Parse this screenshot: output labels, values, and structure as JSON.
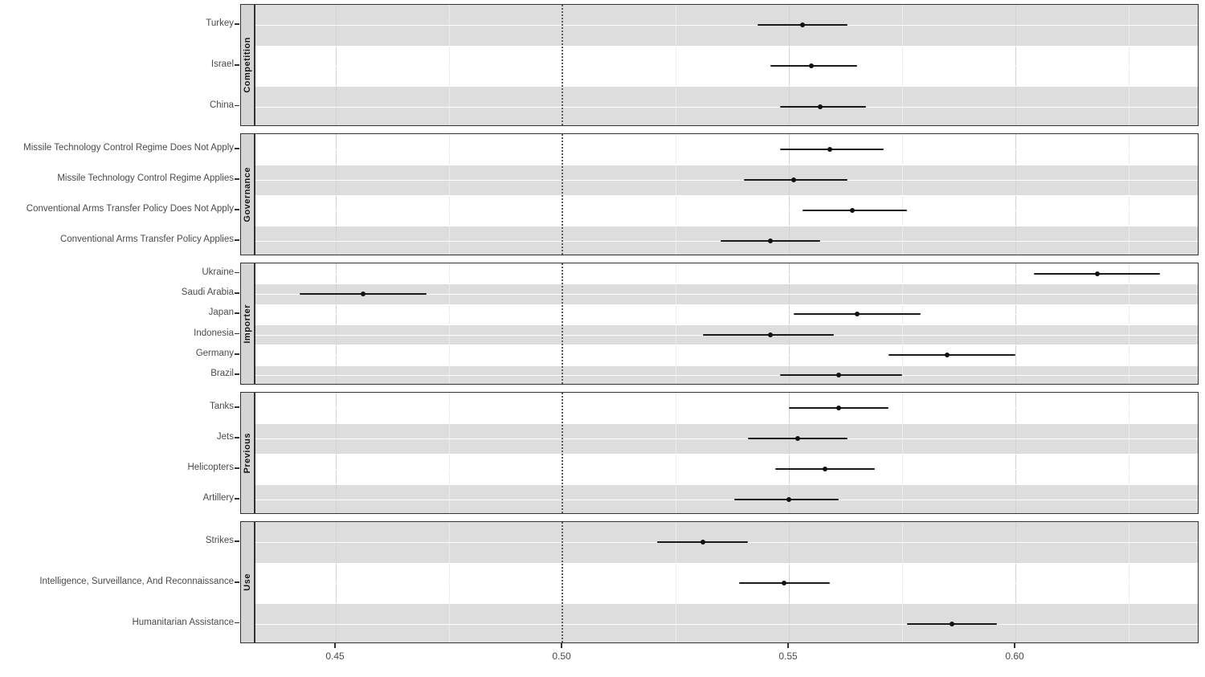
{
  "chart_data": {
    "type": "scatter",
    "subtype": "forest-pointrange-faceted",
    "title": "",
    "xlabel": "",
    "ylabel": "",
    "x_ticks": [
      {
        "value": 0.45,
        "label": "0.45"
      },
      {
        "value": 0.5,
        "label": "0.50"
      },
      {
        "value": 0.55,
        "label": "0.55"
      },
      {
        "value": 0.6,
        "label": "0.60"
      }
    ],
    "x_minor_ticks": [
      0.475,
      0.525,
      0.575,
      0.625
    ],
    "x_range": [
      0.4323,
      0.6406
    ],
    "reference_line": 0.5,
    "grid": true,
    "legend_position": "none",
    "facets": [
      {
        "label": "Competition",
        "rows": [
          {
            "label": "Turkey",
            "estimate": 0.553,
            "lower": 0.543,
            "upper": 0.563
          },
          {
            "label": "Israel",
            "estimate": 0.555,
            "lower": 0.546,
            "upper": 0.565
          },
          {
            "label": "China",
            "estimate": 0.557,
            "lower": 0.548,
            "upper": 0.567
          }
        ]
      },
      {
        "label": "Governance",
        "rows": [
          {
            "label": "Missile Technology Control Regime Does Not Apply",
            "estimate": 0.559,
            "lower": 0.548,
            "upper": 0.571
          },
          {
            "label": "Missile Technology Control Regime Applies",
            "estimate": 0.551,
            "lower": 0.54,
            "upper": 0.563
          },
          {
            "label": "Conventional Arms Transfer Policy Does Not Apply",
            "estimate": 0.564,
            "lower": 0.553,
            "upper": 0.576
          },
          {
            "label": "Conventional Arms Transfer Policy Applies",
            "estimate": 0.546,
            "lower": 0.535,
            "upper": 0.557
          }
        ]
      },
      {
        "label": "Importer",
        "rows": [
          {
            "label": "Ukraine",
            "estimate": 0.618,
            "lower": 0.604,
            "upper": 0.632
          },
          {
            "label": "Saudi Arabia",
            "estimate": 0.456,
            "lower": 0.442,
            "upper": 0.47
          },
          {
            "label": "Japan",
            "estimate": 0.565,
            "lower": 0.551,
            "upper": 0.579
          },
          {
            "label": "Indonesia",
            "estimate": 0.546,
            "lower": 0.531,
            "upper": 0.56
          },
          {
            "label": "Germany",
            "estimate": 0.585,
            "lower": 0.572,
            "upper": 0.6
          },
          {
            "label": "Brazil",
            "estimate": 0.561,
            "lower": 0.548,
            "upper": 0.575
          }
        ]
      },
      {
        "label": "Previous",
        "rows": [
          {
            "label": "Tanks",
            "estimate": 0.561,
            "lower": 0.55,
            "upper": 0.572
          },
          {
            "label": "Jets",
            "estimate": 0.552,
            "lower": 0.541,
            "upper": 0.563
          },
          {
            "label": "Helicopters",
            "estimate": 0.558,
            "lower": 0.547,
            "upper": 0.569
          },
          {
            "label": "Artillery",
            "estimate": 0.55,
            "lower": 0.538,
            "upper": 0.561
          }
        ]
      },
      {
        "label": "Use",
        "rows": [
          {
            "label": "Strikes",
            "estimate": 0.531,
            "lower": 0.521,
            "upper": 0.541
          },
          {
            "label": "Intelligence, Surveillance, And Reconnaissance",
            "estimate": 0.549,
            "lower": 0.539,
            "upper": 0.559
          },
          {
            "label": "Humanitarian Assistance",
            "estimate": 0.586,
            "lower": 0.576,
            "upper": 0.596
          }
        ]
      }
    ],
    "colors": {
      "point": "#111111",
      "interval": "#1a1a1a",
      "stripe": "#dddddd",
      "strip_background": "#d5d5d5",
      "panel_border": "#333333",
      "reference_line": "#5c5c5c",
      "axis_text": "#4a4a4a",
      "grid_major": "#d2d2d2",
      "grid_minor": "#ececec"
    }
  }
}
